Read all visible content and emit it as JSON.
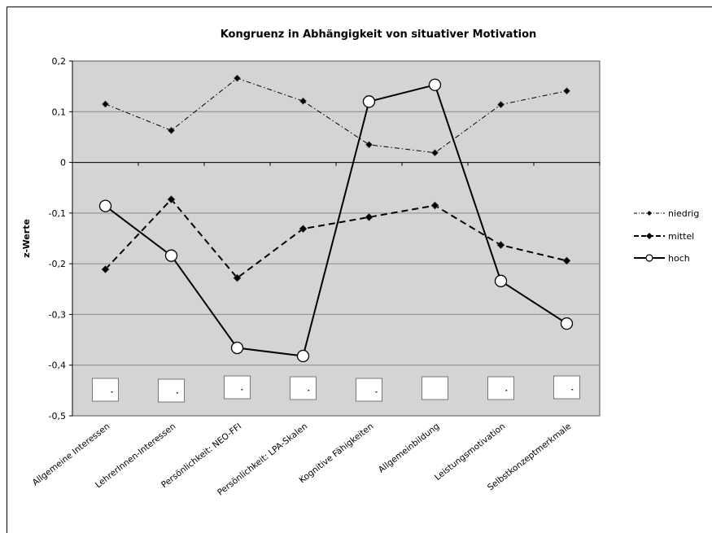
{
  "chart_data": {
    "type": "line",
    "title": "Kongruenz in Abhängigkeit von situativer Motivation",
    "xlabel": "",
    "ylabel": "z-Werte",
    "ylim": [
      -0.5,
      0.2
    ],
    "yticks": [
      "0,2",
      "0,1",
      "0",
      "-0,1",
      "-0,2",
      "-0,3",
      "-0,4",
      "-0,5"
    ],
    "ytick_values": [
      0.2,
      0.1,
      0,
      -0.1,
      -0.2,
      -0.3,
      -0.4,
      -0.5
    ],
    "grid": true,
    "legend_position": "right",
    "categories": [
      "Allgemeine Interessen",
      "LehrerInnen-Interessen",
      "Persönlichkeit: NEO-FFI",
      "Persönlichkeit: LPA-Skalen",
      "Kognitive Fähigkeiten",
      "Allgemeinbildung",
      "Leistungsmotivation",
      "Selbstkonzeptmerkmale"
    ],
    "series": [
      {
        "name": "niedrig",
        "values": [
          0.115,
          0.063,
          0.166,
          0.121,
          0.035,
          0.019,
          0.114,
          0.141
        ]
      },
      {
        "name": "mittel",
        "values": [
          -0.211,
          -0.073,
          -0.228,
          -0.131,
          -0.108,
          -0.085,
          -0.163,
          -0.194
        ]
      },
      {
        "name": "hoch",
        "values": [
          -0.086,
          -0.184,
          -0.366,
          -0.382,
          0.12,
          0.153,
          -0.234,
          -0.318
        ]
      }
    ],
    "colors": {
      "plot_bg": "#d4d4d4",
      "grid": "#8a8a8a",
      "line": "#000000",
      "marker_fill": "#ffffff"
    }
  }
}
